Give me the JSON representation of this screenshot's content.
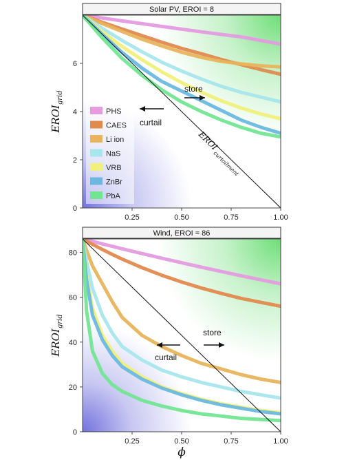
{
  "colors": {
    "PHS": "#e49be0",
    "CAES": "#e08a4e",
    "Li ion": "#e8b45c",
    "NaS": "#a6e6ec",
    "VRB": "#f0f07a",
    "ZnBr": "#6cb8e0",
    "PbA": "#72e592",
    "store_corner": "#6ede78",
    "curtail_corner": "#7272de",
    "curtailment_line": "#111111"
  },
  "xlabel": "ϕ",
  "ylabel_base": "EROI",
  "ylabel_sub": "grid",
  "legend": {
    "placement": "left",
    "entries": [
      "PHS",
      "CAES",
      "Li ion",
      "NaS",
      "VRB",
      "ZnBr",
      "PbA"
    ]
  },
  "chart_data": [
    {
      "type": "line",
      "title": "Solar PV, EROI = 8",
      "xlim": [
        0,
        1
      ],
      "ylim": [
        0,
        8
      ],
      "xticks": [
        "0.25",
        "0.50",
        "0.75",
        "1.00"
      ],
      "yticks": [
        "0",
        "2",
        "4",
        "6"
      ],
      "x": [
        0,
        0.1,
        0.2,
        0.3,
        0.4,
        0.5,
        0.6,
        0.7,
        0.8,
        0.9,
        1.0
      ],
      "curtailment_line": {
        "label": "EROI",
        "sub": "curtailment",
        "points": [
          [
            0,
            8
          ],
          [
            1,
            0
          ]
        ]
      },
      "annotations": {
        "store": "store",
        "curtail": "curtail"
      },
      "series": [
        {
          "name": "PHS",
          "values": [
            8,
            7.88,
            7.76,
            7.65,
            7.53,
            7.42,
            7.31,
            7.2,
            7.1,
            6.95,
            6.8
          ]
        },
        {
          "name": "CAES",
          "values": [
            8,
            7.7,
            7.42,
            7.15,
            6.88,
            6.62,
            6.4,
            6.16,
            5.95,
            5.74,
            5.55
          ]
        },
        {
          "name": "Li ion",
          "values": [
            8,
            7.65,
            7.32,
            7.0,
            6.72,
            6.46,
            6.25,
            6.08,
            5.98,
            5.9,
            5.85
          ]
        },
        {
          "name": "NaS",
          "values": [
            8,
            7.45,
            6.95,
            6.48,
            6.05,
            5.68,
            5.35,
            5.05,
            4.8,
            4.6,
            4.4
          ]
        },
        {
          "name": "VRB",
          "values": [
            8,
            7.3,
            6.7,
            6.15,
            5.65,
            5.2,
            4.8,
            4.45,
            4.15,
            3.9,
            3.7
          ]
        },
        {
          "name": "ZnBr",
          "values": [
            8,
            7.2,
            6.45,
            5.8,
            5.25,
            4.85,
            4.45,
            4.05,
            3.65,
            3.35,
            3.1
          ]
        },
        {
          "name": "PbA",
          "values": [
            8,
            7.05,
            6.2,
            5.5,
            4.9,
            4.4,
            4.0,
            3.65,
            3.35,
            3.1,
            2.95
          ]
        }
      ]
    },
    {
      "type": "line",
      "title": "Wind, EROI = 86",
      "xlim": [
        0,
        1
      ],
      "ylim": [
        0,
        86
      ],
      "xticks": [
        "0.25",
        "0.50",
        "0.75",
        "1.00"
      ],
      "yticks": [
        "0",
        "20",
        "40",
        "60",
        "80"
      ],
      "x": [
        0,
        0.02,
        0.05,
        0.1,
        0.15,
        0.2,
        0.3,
        0.4,
        0.5,
        0.6,
        0.7,
        0.8,
        0.9,
        1.0
      ],
      "curtailment_line": {
        "points": [
          [
            0,
            86
          ],
          [
            1,
            0
          ]
        ]
      },
      "annotations": {
        "store": "store",
        "curtail": "curtail"
      },
      "series": [
        {
          "name": "PHS",
          "values": [
            86,
            85.6,
            85,
            83.8,
            82.7,
            81.6,
            79.5,
            77.4,
            75.4,
            73.4,
            71.5,
            69.6,
            67.8,
            66
          ]
        },
        {
          "name": "CAES",
          "values": [
            86,
            85,
            83.6,
            81.3,
            79.1,
            77,
            73.2,
            69.8,
            66.8,
            64.1,
            61.7,
            59.5,
            57.7,
            56
          ]
        },
        {
          "name": "Li ion",
          "values": [
            86,
            81,
            74,
            66,
            58,
            51,
            43,
            38,
            34,
            30.5,
            28,
            25.5,
            23.5,
            22
          ]
        },
        {
          "name": "NaS",
          "values": [
            86,
            76,
            64,
            52,
            44,
            38,
            32,
            27.5,
            24.5,
            22,
            20,
            18,
            16.5,
            15
          ]
        },
        {
          "name": "VRB",
          "values": [
            86,
            70,
            55,
            43,
            36,
            30.5,
            24.5,
            20,
            17,
            14.5,
            12.5,
            11,
            9.5,
            8.5
          ]
        },
        {
          "name": "ZnBr",
          "values": [
            86,
            68,
            52,
            41,
            34,
            29,
            23.5,
            19.5,
            16.5,
            14,
            12,
            10.5,
            9,
            8
          ]
        },
        {
          "name": "PbA",
          "values": [
            86,
            54,
            36,
            26,
            21,
            18,
            14,
            11.5,
            9.5,
            8,
            7,
            6,
            5.5,
            5
          ]
        }
      ]
    }
  ]
}
